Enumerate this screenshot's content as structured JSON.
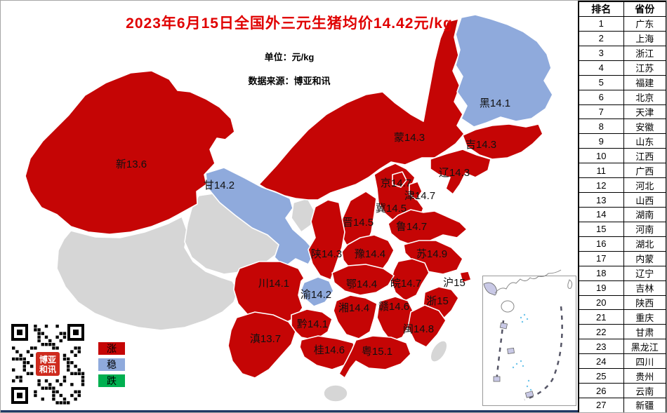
{
  "title": "2023年6月15日全国外三元生猪均价14.42元/kg",
  "notes": {
    "unit": "单位：元/kg",
    "source": "数据来源：博亚和讯"
  },
  "colors": {
    "up": "#C50505",
    "stable": "#8FAADC",
    "down": "#00B050",
    "no_data": "#D6D6D6",
    "title": "#E00000",
    "bottom_bar": "#1F3864"
  },
  "legend": [
    {
      "key": "up",
      "label": "涨"
    },
    {
      "key": "stable",
      "label": "稳"
    },
    {
      "key": "down",
      "label": "跌"
    }
  ],
  "map": {
    "provinces": [
      {
        "abbr": "新",
        "value": 13.6,
        "display": "新13.6",
        "status": "up"
      },
      {
        "abbr": "甘",
        "value": 14.2,
        "display": "甘14.2",
        "status": "stable"
      },
      {
        "abbr": "蒙",
        "value": 14.3,
        "display": "蒙14.3",
        "status": "up"
      },
      {
        "abbr": "黑",
        "value": 14.1,
        "display": "黑14.1",
        "status": "stable"
      },
      {
        "abbr": "吉",
        "value": 14.3,
        "display": "吉14.3",
        "status": "up"
      },
      {
        "abbr": "辽",
        "value": 14.3,
        "display": "辽14.3",
        "status": "up"
      },
      {
        "abbr": "京",
        "value": 14.7,
        "display": "京14.7",
        "status": "up"
      },
      {
        "abbr": "津",
        "value": 14.7,
        "display": "津14.7",
        "status": "up"
      },
      {
        "abbr": "冀",
        "value": 14.5,
        "display": "冀14.5",
        "status": "up"
      },
      {
        "abbr": "晋",
        "value": 14.5,
        "display": "晋14.5",
        "status": "up"
      },
      {
        "abbr": "鲁",
        "value": 14.7,
        "display": "鲁14.7",
        "status": "up"
      },
      {
        "abbr": "陕",
        "value": 14.3,
        "display": "陕14.3",
        "status": "up"
      },
      {
        "abbr": "豫",
        "value": 14.4,
        "display": "豫14.4",
        "status": "up"
      },
      {
        "abbr": "苏",
        "value": 14.9,
        "display": "苏14.9",
        "status": "up"
      },
      {
        "abbr": "皖",
        "value": 14.7,
        "display": "皖14.7",
        "status": "up"
      },
      {
        "abbr": "沪",
        "value": 15,
        "display": "沪15",
        "status": "up"
      },
      {
        "abbr": "浙",
        "value": 15,
        "display": "浙15",
        "status": "up"
      },
      {
        "abbr": "鄂",
        "value": 14.4,
        "display": "鄂14.4",
        "status": "up"
      },
      {
        "abbr": "川",
        "value": 14.1,
        "display": "川14.1",
        "status": "up"
      },
      {
        "abbr": "渝",
        "value": 14.2,
        "display": "渝14.2",
        "status": "stable"
      },
      {
        "abbr": "湘",
        "value": 14.4,
        "display": "湘14.4",
        "status": "up"
      },
      {
        "abbr": "赣",
        "value": 14.6,
        "display": "赣14.6",
        "status": "up"
      },
      {
        "abbr": "黔",
        "value": 14.1,
        "display": "黔14.1",
        "status": "up"
      },
      {
        "abbr": "闽",
        "value": 14.8,
        "display": "闽14.8",
        "status": "up"
      },
      {
        "abbr": "滇",
        "value": 13.7,
        "display": "滇13.7",
        "status": "up"
      },
      {
        "abbr": "桂",
        "value": 14.6,
        "display": "桂14.6",
        "status": "up"
      },
      {
        "abbr": "粤",
        "value": 15.1,
        "display": "粤15.1",
        "status": "up"
      }
    ]
  },
  "qr": {
    "seal_line1": "博亚",
    "seal_line2": "和讯"
  },
  "ranking_table": {
    "headers": [
      "排名",
      "省份"
    ],
    "rows": [
      {
        "rank": "1",
        "province": "广东"
      },
      {
        "rank": "2",
        "province": "上海"
      },
      {
        "rank": "3",
        "province": "浙江"
      },
      {
        "rank": "4",
        "province": "江苏"
      },
      {
        "rank": "5",
        "province": "福建"
      },
      {
        "rank": "6",
        "province": "北京"
      },
      {
        "rank": "7",
        "province": "天津"
      },
      {
        "rank": "8",
        "province": "安徽"
      },
      {
        "rank": "9",
        "province": "山东"
      },
      {
        "rank": "10",
        "province": "江西"
      },
      {
        "rank": "11",
        "province": "广西"
      },
      {
        "rank": "12",
        "province": "河北"
      },
      {
        "rank": "13",
        "province": "山西"
      },
      {
        "rank": "14",
        "province": "湖南"
      },
      {
        "rank": "15",
        "province": "河南"
      },
      {
        "rank": "16",
        "province": "湖北"
      },
      {
        "rank": "17",
        "province": "内蒙"
      },
      {
        "rank": "18",
        "province": "辽宁"
      },
      {
        "rank": "19",
        "province": "吉林"
      },
      {
        "rank": "20",
        "province": "陕西"
      },
      {
        "rank": "21",
        "province": "重庆"
      },
      {
        "rank": "22",
        "province": "甘肃"
      },
      {
        "rank": "23",
        "province": "黑龙江"
      },
      {
        "rank": "24",
        "province": "四川"
      },
      {
        "rank": "25",
        "province": "贵州"
      },
      {
        "rank": "26",
        "province": "云南"
      },
      {
        "rank": "27",
        "province": "新疆"
      }
    ]
  }
}
